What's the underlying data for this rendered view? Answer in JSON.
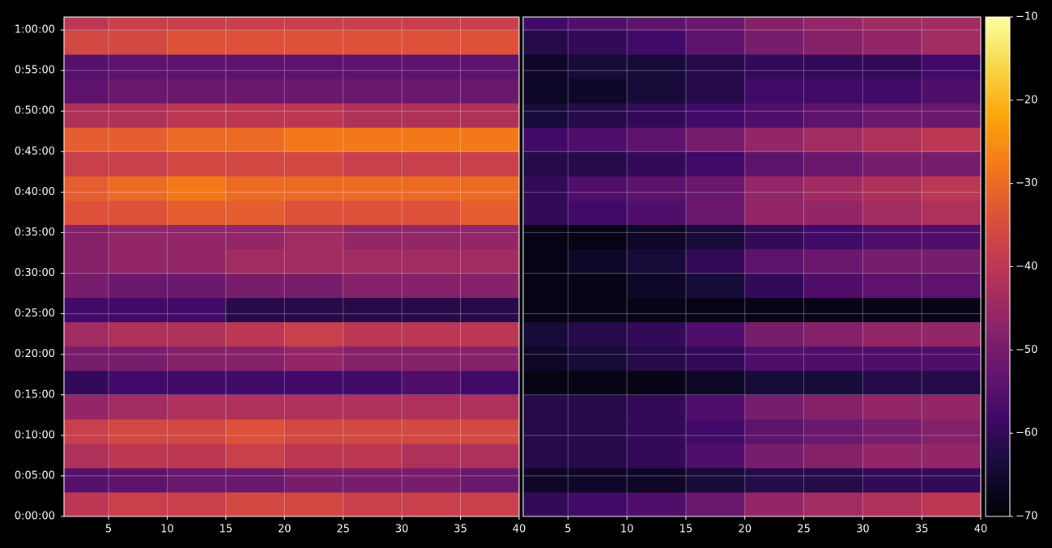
{
  "chart_data": {
    "type": "heatmap",
    "colormap": "inferno",
    "grid": true,
    "ylim": [
      0,
      3696
    ],
    "yticks": [
      {
        "value": 0,
        "label": "0:00:00"
      },
      {
        "value": 300,
        "label": "0:05:00"
      },
      {
        "value": 600,
        "label": "0:10:00"
      },
      {
        "value": 900,
        "label": "0:15:00"
      },
      {
        "value": 1200,
        "label": "0:20:00"
      },
      {
        "value": 1500,
        "label": "0:25:00"
      },
      {
        "value": 1800,
        "label": "0:30:00"
      },
      {
        "value": 2100,
        "label": "0:35:00"
      },
      {
        "value": 2400,
        "label": "0:40:00"
      },
      {
        "value": 2700,
        "label": "0:45:00"
      },
      {
        "value": 3000,
        "label": "0:50:00"
      },
      {
        "value": 3300,
        "label": "0:55:00"
      },
      {
        "value": 3600,
        "label": "1:00:00"
      }
    ],
    "y_edges": [
      0,
      180,
      360,
      540,
      720,
      900,
      1080,
      1260,
      1440,
      1620,
      1800,
      1980,
      2160,
      2340,
      2520,
      2700,
      2880,
      3060,
      3240,
      3420,
      3600,
      3696
    ],
    "clim": [
      -70,
      -10
    ],
    "cticks": [
      {
        "value": -70,
        "label": "−70"
      },
      {
        "value": -60,
        "label": "−60"
      },
      {
        "value": -50,
        "label": "−50"
      },
      {
        "value": -40,
        "label": "−40"
      },
      {
        "value": -30,
        "label": "−30"
      },
      {
        "value": -20,
        "label": "−20"
      },
      {
        "value": -10,
        "label": "−10"
      }
    ],
    "panels": [
      {
        "xlim": [
          1.2,
          40
        ],
        "xticks": [
          5,
          10,
          15,
          20,
          25,
          30,
          35,
          40
        ],
        "x_edges": [
          1.2,
          5,
          10,
          15,
          20,
          25,
          30,
          35,
          40
        ],
        "values": [
          [
            -40,
            -38,
            -38,
            -36,
            -36,
            -38,
            -38,
            -38
          ],
          [
            -55,
            -54,
            -52,
            -52,
            -50,
            -50,
            -50,
            -52
          ],
          [
            -42,
            -40,
            -40,
            -38,
            -40,
            -40,
            -42,
            -42
          ],
          [
            -38,
            -36,
            -36,
            -34,
            -36,
            -36,
            -36,
            -36
          ],
          [
            -46,
            -44,
            -42,
            -42,
            -42,
            -42,
            -42,
            -42
          ],
          [
            -60,
            -58,
            -58,
            -58,
            -58,
            -58,
            -56,
            -58
          ],
          [
            -50,
            -50,
            -48,
            -48,
            -46,
            -48,
            -48,
            -48
          ],
          [
            -44,
            -42,
            -42,
            -40,
            -38,
            -40,
            -40,
            -40
          ],
          [
            -58,
            -58,
            -58,
            -62,
            -62,
            -62,
            -62,
            -62
          ],
          [
            -50,
            -52,
            -52,
            -50,
            -50,
            -48,
            -48,
            -48
          ],
          [
            -48,
            -46,
            -46,
            -44,
            -44,
            -44,
            -44,
            -44
          ],
          [
            -48,
            -46,
            -46,
            -46,
            -44,
            -46,
            -46,
            -46
          ],
          [
            -34,
            -34,
            -32,
            -32,
            -34,
            -34,
            -34,
            -32
          ],
          [
            -32,
            -30,
            -28,
            -30,
            -30,
            -30,
            -30,
            -30
          ],
          [
            -38,
            -38,
            -36,
            -36,
            -36,
            -38,
            -38,
            -38
          ],
          [
            -32,
            -32,
            -30,
            -30,
            -28,
            -28,
            -28,
            -28
          ],
          [
            -42,
            -42,
            -40,
            -40,
            -40,
            -42,
            -42,
            -42
          ],
          [
            -54,
            -52,
            -52,
            -52,
            -52,
            -52,
            -52,
            -52
          ],
          [
            -55,
            -54,
            -54,
            -54,
            -54,
            -54,
            -54,
            -54
          ],
          [
            -36,
            -36,
            -34,
            -34,
            -34,
            -34,
            -34,
            -34
          ],
          [
            -40,
            -38,
            -38,
            -38,
            -38,
            -38,
            -38,
            -38
          ]
        ]
      },
      {
        "xlim": [
          1.2,
          40
        ],
        "xticks": [
          5,
          10,
          15,
          20,
          25,
          30,
          35,
          40
        ],
        "x_edges": [
          1.2,
          5,
          10,
          15,
          20,
          25,
          30,
          35,
          40
        ],
        "values": [
          [
            -60,
            -58,
            -56,
            -52,
            -46,
            -44,
            -42,
            -40
          ],
          [
            -66,
            -66,
            -66,
            -64,
            -62,
            -62,
            -60,
            -60
          ],
          [
            -62,
            -62,
            -60,
            -56,
            -50,
            -48,
            -46,
            -46
          ],
          [
            -62,
            -62,
            -60,
            -58,
            -54,
            -52,
            -50,
            -48
          ],
          [
            -62,
            -62,
            -60,
            -56,
            -50,
            -48,
            -46,
            -46
          ],
          [
            -68,
            -68,
            -68,
            -66,
            -64,
            -64,
            -62,
            -62
          ],
          [
            -66,
            -64,
            -62,
            -60,
            -56,
            -56,
            -56,
            -56
          ],
          [
            -64,
            -62,
            -60,
            -56,
            -50,
            -48,
            -46,
            -46
          ],
          [
            -68,
            -68,
            -68,
            -68,
            -68,
            -68,
            -68,
            -68
          ],
          [
            -68,
            -68,
            -66,
            -64,
            -60,
            -56,
            -54,
            -54
          ],
          [
            -68,
            -66,
            -64,
            -60,
            -54,
            -52,
            -50,
            -50
          ],
          [
            -68,
            -68,
            -66,
            -64,
            -60,
            -58,
            -56,
            -56
          ],
          [
            -60,
            -58,
            -56,
            -52,
            -46,
            -46,
            -44,
            -42
          ],
          [
            -60,
            -56,
            -54,
            -52,
            -46,
            -44,
            -42,
            -40
          ],
          [
            -62,
            -62,
            -60,
            -58,
            -54,
            -52,
            -50,
            -50
          ],
          [
            -58,
            -56,
            -54,
            -50,
            -46,
            -44,
            -42,
            -40
          ],
          [
            -64,
            -62,
            -60,
            -58,
            -56,
            -54,
            -52,
            -52
          ],
          [
            -66,
            -66,
            -64,
            -62,
            -58,
            -58,
            -58,
            -56
          ],
          [
            -66,
            -64,
            -64,
            -62,
            -60,
            -60,
            -60,
            -58
          ],
          [
            -62,
            -60,
            -58,
            -54,
            -50,
            -48,
            -46,
            -44
          ],
          [
            -58,
            -56,
            -54,
            -52,
            -48,
            -46,
            -44,
            -44
          ]
        ]
      }
    ]
  }
}
